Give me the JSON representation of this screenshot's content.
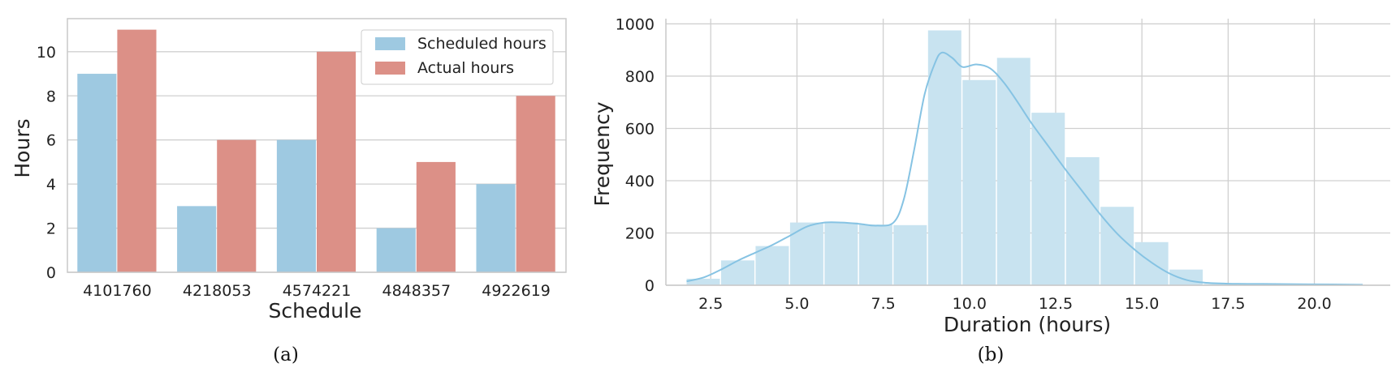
{
  "colors": {
    "scheduled": "#9ec9e1",
    "actual": "#dc9087",
    "hist_fill": "#c8e3f0",
    "kde_line": "#86c3e3",
    "grid": "#d0d0d0",
    "axis": "#c8c8c8"
  },
  "captions": {
    "a": "(a)",
    "b": "(b)"
  },
  "chart_data": [
    {
      "type": "bar",
      "categories": [
        "4101760",
        "4218053",
        "4574221",
        "4848357",
        "4922619"
      ],
      "series": [
        {
          "name": "Scheduled hours",
          "values": [
            9,
            3,
            6,
            2,
            4
          ]
        },
        {
          "name": "Actual hours",
          "values": [
            11,
            6,
            10,
            5,
            8
          ]
        }
      ],
      "xlabel": "Schedule",
      "ylabel": "Hours",
      "ylim": [
        0,
        11.5
      ],
      "yticks": [
        0,
        2,
        4,
        6,
        8,
        10
      ],
      "grid": true,
      "legend_position": "top-right"
    },
    {
      "type": "bar",
      "subtype": "histogram-with-kde",
      "bins": [
        {
          "x0": 1.8,
          "x1": 2.8,
          "value": 25
        },
        {
          "x0": 2.8,
          "x1": 3.8,
          "value": 95
        },
        {
          "x0": 3.8,
          "x1": 4.8,
          "value": 150
        },
        {
          "x0": 4.8,
          "x1": 5.8,
          "value": 240
        },
        {
          "x0": 5.8,
          "x1": 6.8,
          "value": 240
        },
        {
          "x0": 6.8,
          "x1": 7.8,
          "value": 232
        },
        {
          "x0": 7.8,
          "x1": 8.8,
          "value": 230
        },
        {
          "x0": 8.8,
          "x1": 9.8,
          "value": 975
        },
        {
          "x0": 9.8,
          "x1": 10.8,
          "value": 785
        },
        {
          "x0": 10.8,
          "x1": 11.8,
          "value": 870
        },
        {
          "x0": 11.8,
          "x1": 12.8,
          "value": 660
        },
        {
          "x0": 12.8,
          "x1": 13.8,
          "value": 490
        },
        {
          "x0": 13.8,
          "x1": 14.8,
          "value": 300
        },
        {
          "x0": 14.8,
          "x1": 15.8,
          "value": 165
        },
        {
          "x0": 15.8,
          "x1": 16.8,
          "value": 60
        },
        {
          "x0": 16.8,
          "x1": 17.8,
          "value": 5
        },
        {
          "x0": 17.8,
          "x1": 18.8,
          "value": 3
        },
        {
          "x0": 18.8,
          "x1": 19.8,
          "value": 2
        },
        {
          "x0": 19.8,
          "x1": 20.8,
          "value": 2
        },
        {
          "x0": 20.8,
          "x1": 21.4,
          "value": 1
        }
      ],
      "kde": {
        "x": [
          1.8,
          2.3,
          2.8,
          3.3,
          3.8,
          4.3,
          4.8,
          5.3,
          5.8,
          6.3,
          6.8,
          7.3,
          7.8,
          8.1,
          8.4,
          8.7,
          9.0,
          9.2,
          9.5,
          9.8,
          10.2,
          10.6,
          11.0,
          11.4,
          11.8,
          12.3,
          12.8,
          13.3,
          13.8,
          14.3,
          14.8,
          15.3,
          15.8,
          16.3,
          16.8,
          17.5,
          18.5,
          19.5,
          20.5,
          21.4
        ],
        "y": [
          15,
          30,
          60,
          95,
          125,
          155,
          190,
          225,
          240,
          240,
          235,
          228,
          240,
          330,
          520,
          730,
          850,
          890,
          870,
          835,
          845,
          830,
          775,
          700,
          620,
          530,
          440,
          355,
          270,
          195,
          135,
          85,
          45,
          20,
          10,
          6,
          5,
          4,
          3,
          2
        ]
      },
      "xlabel": "Duration (hours)",
      "ylabel": "Frequency",
      "xlim": [
        1.2,
        22.2
      ],
      "ylim": [
        0,
        1020
      ],
      "xticks": [
        2.5,
        5.0,
        7.5,
        10.0,
        12.5,
        15.0,
        17.5,
        20.0
      ],
      "xtick_labels": [
        "2.5",
        "5.0",
        "7.5",
        "10.0",
        "12.5",
        "15.0",
        "17.5",
        "20.0"
      ],
      "yticks": [
        0,
        200,
        400,
        600,
        800,
        1000
      ],
      "grid": true
    }
  ]
}
